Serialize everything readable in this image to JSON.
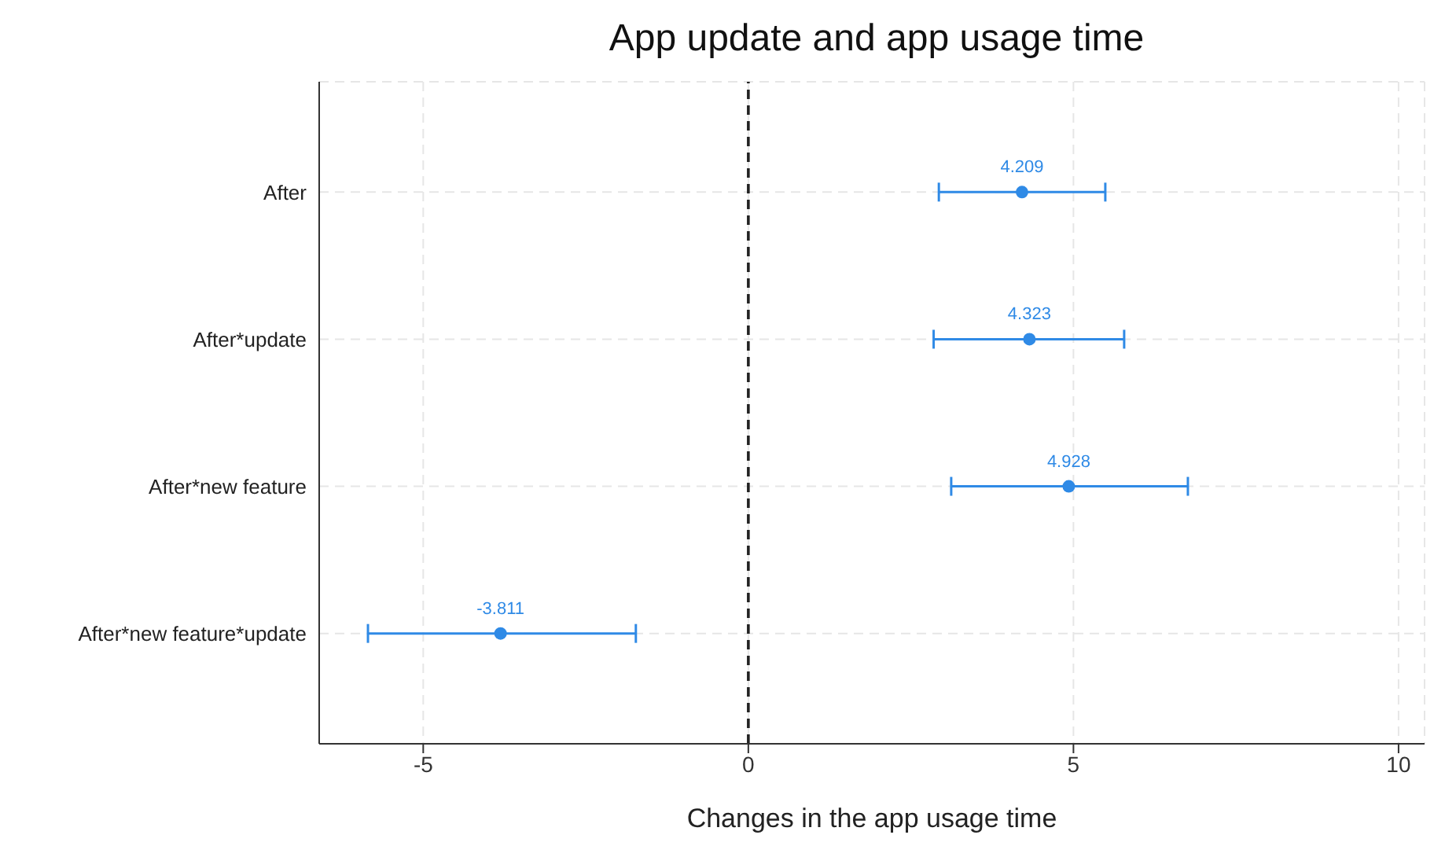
{
  "chart_data": {
    "type": "scatter",
    "title": "App update and app usage time",
    "xlabel": "Changes in the app usage time",
    "categories": [
      "After",
      "After*update",
      "After*new feature",
      "After*new feature*update"
    ],
    "orientation": "horizontal",
    "series": [
      {
        "color": "#2f8ae6",
        "values": [
          4.209,
          4.323,
          4.928,
          -3.811
        ],
        "errors": [
          [
            2.93,
            5.49
          ],
          [
            2.85,
            5.78
          ],
          [
            3.12,
            6.76
          ],
          [
            -5.85,
            -1.73
          ]
        ]
      }
    ],
    "data_labels": true,
    "marker": "circle",
    "xlim": [
      -6.6,
      10.4
    ],
    "xticks": [
      -5,
      0,
      5,
      10
    ],
    "ref_lines": [
      {
        "axis": "x",
        "value": 0,
        "color": "#222222",
        "line_style": "dashed"
      }
    ],
    "grid": true
  }
}
